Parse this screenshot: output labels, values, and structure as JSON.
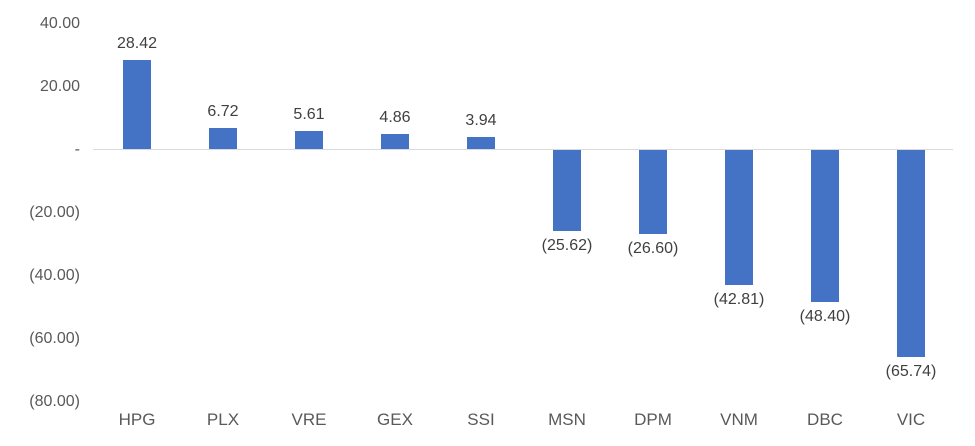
{
  "chart_data": {
    "type": "bar",
    "title": "",
    "xlabel": "",
    "ylabel": "",
    "categories": [
      "HPG",
      "PLX",
      "VRE",
      "GEX",
      "SSI",
      "MSN",
      "DPM",
      "VNM",
      "DBC",
      "VIC"
    ],
    "values": [
      28.42,
      6.72,
      5.61,
      4.86,
      3.94,
      -25.62,
      -26.6,
      -42.81,
      -48.4,
      -65.74
    ],
    "data_labels": [
      "28.42",
      "6.72",
      "5.61",
      "4.86",
      "3.94",
      "(25.62)",
      "(26.60)",
      "(42.81)",
      "(48.40)",
      "(65.74)"
    ],
    "y_ticks": [
      {
        "value": 40,
        "label": "40.00"
      },
      {
        "value": 20,
        "label": "20.00"
      },
      {
        "value": 0,
        "label": "-"
      },
      {
        "value": -20,
        "label": "(20.00)"
      },
      {
        "value": -40,
        "label": "(40.00)"
      },
      {
        "value": -60,
        "label": "(60.00)"
      },
      {
        "value": -80,
        "label": "(80.00)"
      }
    ],
    "ylim": [
      -80,
      40
    ],
    "grid": false,
    "legend": false,
    "colors": {
      "bar": "#4472C4",
      "axis_line": "#D9D9D9",
      "data_label": "#404040",
      "tick_label": "#595959",
      "category_label": "#595959",
      "background": "#FFFFFF"
    }
  }
}
